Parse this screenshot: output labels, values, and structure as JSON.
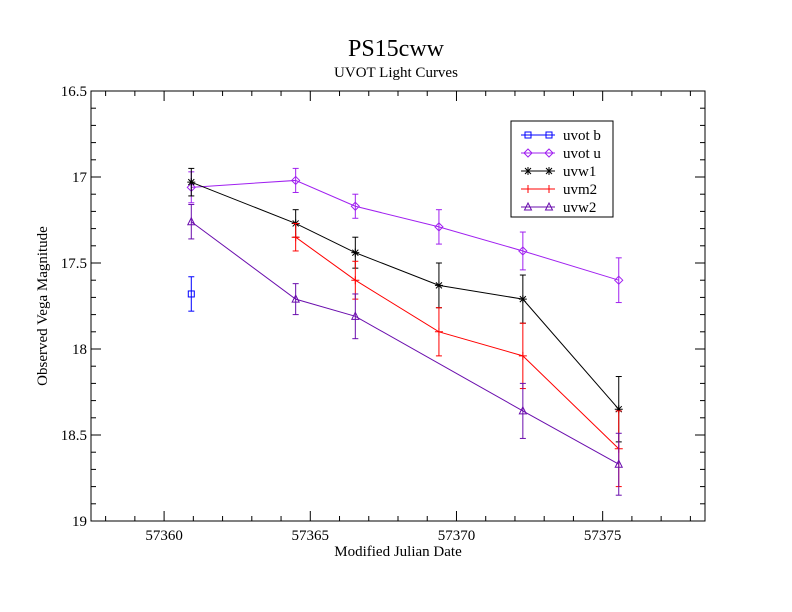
{
  "chart_data": {
    "type": "line",
    "title": "PS15cww",
    "subtitle": "UVOT Light Curves",
    "xlabel": "Modified Julian Date",
    "ylabel": "Observed Vega Magnitude",
    "xlim": [
      57357.5,
      57378.5
    ],
    "ylim": [
      16.5,
      19.0
    ],
    "y_inverted": true,
    "x_ticks": [
      57360,
      57365,
      57370,
      57375
    ],
    "y_ticks": [
      16.5,
      17,
      17.5,
      18,
      18.5,
      19
    ],
    "legend_position": "top-right",
    "grid": false,
    "series": [
      {
        "name": "uvot b",
        "color": "#0000ff",
        "marker": "square",
        "points": [
          {
            "x": 57360.93,
            "y": 17.68,
            "err": 0.1
          }
        ]
      },
      {
        "name": "uvot u",
        "color": "#a020f0",
        "marker": "diamond",
        "points": [
          {
            "x": 57360.93,
            "y": 17.06,
            "err": 0.09
          },
          {
            "x": 57364.5,
            "y": 17.02,
            "err": 0.07
          },
          {
            "x": 57366.54,
            "y": 17.17,
            "err": 0.07
          },
          {
            "x": 57369.4,
            "y": 17.29,
            "err": 0.1
          },
          {
            "x": 57372.27,
            "y": 17.43,
            "err": 0.11
          },
          {
            "x": 57375.55,
            "y": 17.6,
            "err": 0.13
          }
        ]
      },
      {
        "name": "uvw1",
        "color": "#000000",
        "marker": "star",
        "points": [
          {
            "x": 57360.93,
            "y": 17.03,
            "err": 0.08
          },
          {
            "x": 57364.5,
            "y": 17.27,
            "err": 0.08
          },
          {
            "x": 57366.54,
            "y": 17.44,
            "err": 0.09
          },
          {
            "x": 57369.4,
            "y": 17.63,
            "err": 0.13
          },
          {
            "x": 57372.27,
            "y": 17.71,
            "err": 0.14
          },
          {
            "x": 57375.55,
            "y": 18.35,
            "err": 0.19
          }
        ]
      },
      {
        "name": "uvm2",
        "color": "#ff0000",
        "marker": "plus",
        "points": [
          {
            "x": 57364.5,
            "y": 17.35,
            "err": 0.08
          },
          {
            "x": 57366.54,
            "y": 17.6,
            "err": 0.11
          },
          {
            "x": 57369.4,
            "y": 17.9,
            "err": 0.14
          },
          {
            "x": 57372.27,
            "y": 18.04,
            "err": 0.19
          },
          {
            "x": 57375.55,
            "y": 18.58,
            "err": 0.22
          }
        ]
      },
      {
        "name": "uvw2",
        "color": "#6a0dad",
        "marker": "triangle",
        "points": [
          {
            "x": 57360.93,
            "y": 17.26,
            "err": 0.1
          },
          {
            "x": 57364.5,
            "y": 17.71,
            "err": 0.09
          },
          {
            "x": 57366.54,
            "y": 17.81,
            "err": 0.13
          },
          {
            "x": 57372.27,
            "y": 18.36,
            "err": 0.16
          },
          {
            "x": 57375.55,
            "y": 18.67,
            "err": 0.18
          }
        ]
      }
    ]
  }
}
